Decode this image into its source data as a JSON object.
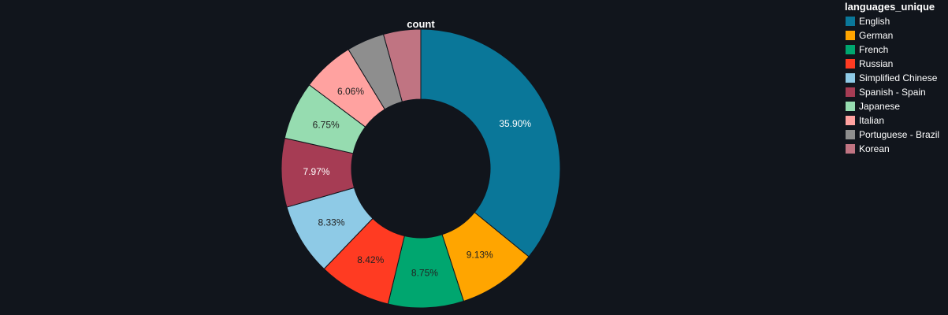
{
  "chart_data": {
    "type": "pie",
    "hole": true,
    "title": "count",
    "legend_title": "languages_unique",
    "legend_position": "top-right",
    "categories": [
      "English",
      "German",
      "French",
      "Russian",
      "Simplified Chinese",
      "Spanish - Spain",
      "Japanese",
      "Italian",
      "Portuguese - Brazil",
      "Korean"
    ],
    "values": [
      35.9,
      9.13,
      8.75,
      8.42,
      8.33,
      7.97,
      6.75,
      6.06,
      4.37,
      4.32
    ],
    "labels": [
      "35.90%",
      "9.13%",
      "8.75%",
      "8.42%",
      "8.33%",
      "7.97%",
      "6.75%",
      "6.06%",
      "",
      ""
    ],
    "colors": [
      "#0a7799",
      "#ffa500",
      "#00a66f",
      "#ff3b22",
      "#8ecae6",
      "#a63c54",
      "#96dcb0",
      "#ffa2a0",
      "#8e8e8e",
      "#c07482"
    ],
    "label_colors": [
      "#ffffff",
      "#222222",
      "#222222",
      "#222222",
      "#222222",
      "#ffffff",
      "#222222",
      "#222222",
      "#222222",
      "#222222"
    ]
  }
}
